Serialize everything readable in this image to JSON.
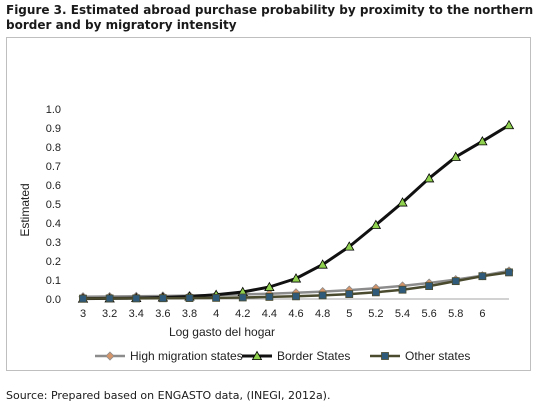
{
  "figure": {
    "title": "Figure 3. Estimated abroad purchase probability by proximity to the northern border and by migratory intensity",
    "source": "Source: Prepared based on ENGASTO data, (INEGI, 2012a)."
  },
  "chart_data": {
    "type": "line",
    "title": "",
    "xlabel": "Log gasto del hogar",
    "ylabel": "Estimated",
    "x_ticks": [
      "3",
      "3.2",
      "3.4",
      "3.6",
      "3.8",
      "4",
      "4.2",
      "4.4",
      "4.6",
      "4.8",
      "5",
      "5.2",
      "5.4",
      "5.6",
      "5.8",
      "6"
    ],
    "y_ticks": [
      "0.0",
      "0.1",
      "0.2",
      "0.3",
      "0.4",
      "0.5",
      "0.6",
      "0.7",
      "0.8",
      "0.9",
      "1.0"
    ],
    "ylim": [
      0,
      1.0
    ],
    "grid": false,
    "legend_position": "bottom",
    "x": [
      3,
      3.2,
      3.4,
      3.6,
      3.8,
      4,
      4.2,
      4.4,
      4.6,
      4.8,
      5,
      5.2,
      5.4,
      5.6,
      5.8,
      6,
      6.2
    ],
    "series": [
      {
        "name": "High migration states",
        "color": "#8c8c8c",
        "marker_color": "#d4956b",
        "marker": "diamond",
        "values": [
          0.012,
          0.013,
          0.014,
          0.016,
          0.018,
          0.021,
          0.024,
          0.028,
          0.033,
          0.039,
          0.047,
          0.057,
          0.069,
          0.084,
          0.102,
          0.123,
          0.148
        ]
      },
      {
        "name": "Border States",
        "color": "#111111",
        "marker_color": "#8fd14f",
        "marker": "triangle",
        "values": [
          0.002,
          0.003,
          0.005,
          0.008,
          0.013,
          0.022,
          0.037,
          0.063,
          0.108,
          0.181,
          0.276,
          0.39,
          0.508,
          0.635,
          0.748,
          0.83,
          0.915
        ]
      },
      {
        "name": "Other states",
        "color": "#4a4a2e",
        "marker_color": "#2f5a7a",
        "marker": "square",
        "values": [
          0.002,
          0.003,
          0.003,
          0.004,
          0.005,
          0.006,
          0.008,
          0.011,
          0.014,
          0.019,
          0.026,
          0.035,
          0.049,
          0.068,
          0.094,
          0.12,
          0.14
        ]
      }
    ]
  }
}
